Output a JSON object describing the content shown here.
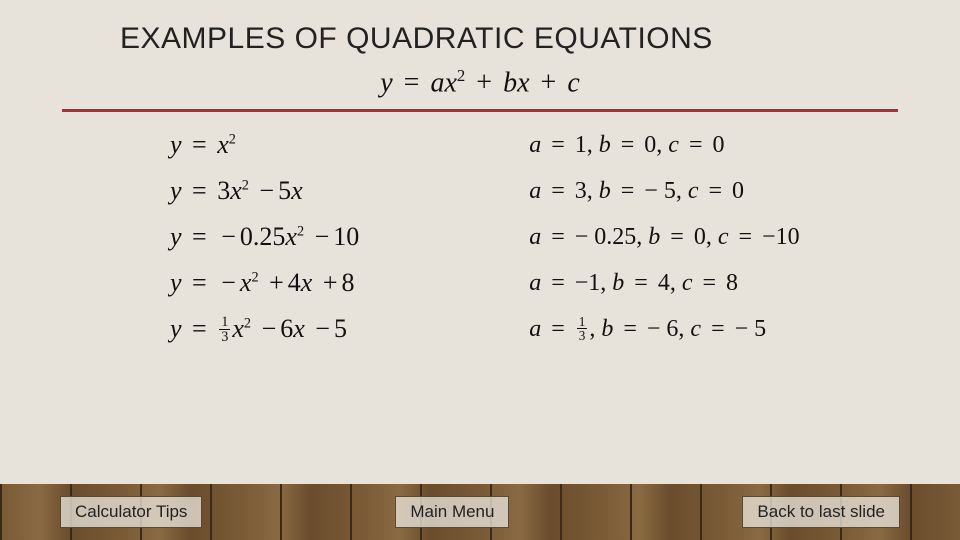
{
  "title": "EXAMPLES OF QUADRATIC EQUATIONS",
  "generalForm": {
    "lhs": "y",
    "a": "a",
    "b": "b",
    "c": "c",
    "x": "x",
    "exp": "2"
  },
  "rows": [
    {
      "eq": {
        "y": "y",
        "terms": [
          {
            "coef": "",
            "x": true,
            "exp": "2"
          }
        ]
      },
      "params": {
        "a": "1",
        "b": "0",
        "c": "0"
      }
    },
    {
      "eq": {
        "y": "y",
        "terms": [
          {
            "coef": "3",
            "x": true,
            "exp": "2"
          },
          {
            "op": "−",
            "coef": "5",
            "x": true
          }
        ]
      },
      "params": {
        "a": "3",
        "b": "− 5",
        "c": "0"
      }
    },
    {
      "eq": {
        "y": "y",
        "terms": [
          {
            "op": "−",
            "coef": "0.25",
            "x": true,
            "exp": "2"
          },
          {
            "op": "−",
            "coef": "10"
          }
        ]
      },
      "params": {
        "a": "− 0.25",
        "b": "0",
        "c": "−10"
      }
    },
    {
      "eq": {
        "y": "y",
        "terms": [
          {
            "op": "−",
            "coef": "",
            "x": true,
            "exp": "2"
          },
          {
            "op": "+",
            "coef": "4",
            "x": true
          },
          {
            "op": "+",
            "coef": "8"
          }
        ]
      },
      "params": {
        "a": "−1",
        "b": "4",
        "c": "8"
      }
    },
    {
      "eq": {
        "y": "y",
        "terms": [
          {
            "frac": {
              "n": "1",
              "d": "3"
            },
            "x": true,
            "exp": "2"
          },
          {
            "op": "−",
            "coef": "6",
            "x": true
          },
          {
            "op": "−",
            "coef": "5"
          }
        ]
      },
      "params": {
        "aFrac": {
          "n": "1",
          "d": "3"
        },
        "b": "− 6",
        "c": "− 5"
      }
    }
  ],
  "buttons": {
    "tips": "Calculator Tips",
    "menu": "Main Menu",
    "back": "Back to last slide"
  },
  "colors": {
    "background": "#e8e3da",
    "rule": "#b02a3a",
    "text": "#111111",
    "buttonBg": "rgba(232,227,218,0.78)",
    "buttonBorder": "#5a4a33"
  },
  "typography": {
    "title_fontsize": 30,
    "equation_fontsize": 26,
    "params_fontsize": 24,
    "button_fontsize": 17,
    "equation_family": "Times New Roman",
    "title_family": "Arial"
  }
}
